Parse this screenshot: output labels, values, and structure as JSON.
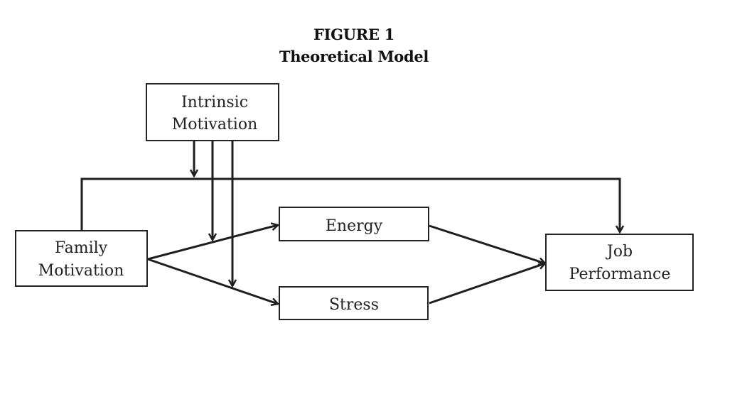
{
  "figure": {
    "number_label": "FIGURE 1",
    "title": "Theoretical Model"
  },
  "nodes": {
    "intrinsic_motivation": {
      "line1": "Intrinsic",
      "line2": "Motivation"
    },
    "family_motivation": {
      "line1": "Family",
      "line2": "Motivation"
    },
    "energy": {
      "label": "Energy"
    },
    "stress": {
      "label": "Stress"
    },
    "job_performance": {
      "line1": "Job",
      "line2": "Performance"
    }
  }
}
